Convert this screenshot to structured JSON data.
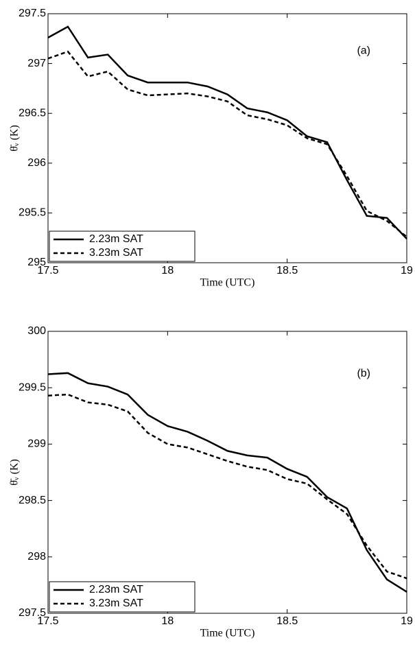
{
  "chart_data": [
    {
      "type": "line",
      "annotation": "(a)",
      "xlabel": "Time (UTC)",
      "ylabel": "θ̄ᵥ (K)",
      "x": [
        17.5,
        17.583,
        17.667,
        17.75,
        17.833,
        17.917,
        18,
        18.083,
        18.167,
        18.25,
        18.333,
        18.417,
        18.5,
        18.583,
        18.667,
        18.75,
        18.833,
        18.917,
        19
      ],
      "series": [
        {
          "name": "2.23m SAT",
          "color": "#000000",
          "linestyle": "solid",
          "values": [
            297.26,
            297.37,
            297.06,
            297.09,
            296.88,
            296.81,
            296.81,
            296.81,
            296.77,
            296.69,
            296.55,
            296.51,
            296.43,
            296.27,
            296.21,
            295.83,
            295.47,
            295.45,
            295.24
          ]
        },
        {
          "name": "3.23m SAT",
          "color": "#000000",
          "linestyle": "dashed",
          "values": [
            297.05,
            297.12,
            296.87,
            296.92,
            296.74,
            296.68,
            296.69,
            296.7,
            296.67,
            296.62,
            296.48,
            296.44,
            296.38,
            296.25,
            296.19,
            295.87,
            295.52,
            295.42,
            295.26
          ]
        }
      ],
      "xlim": [
        17.5,
        19
      ],
      "xticks": [
        17.5,
        18,
        18.5,
        19
      ],
      "ylim": [
        295,
        297.5
      ],
      "yticks": [
        295,
        295.5,
        296,
        296.5,
        297,
        297.5
      ],
      "grid": false,
      "legend": "lower left"
    },
    {
      "type": "line",
      "annotation": "(b)",
      "xlabel": "Time (UTC)",
      "ylabel": "θ̄ᵥ (K)",
      "x": [
        17.5,
        17.583,
        17.667,
        17.75,
        17.833,
        17.917,
        18,
        18.083,
        18.167,
        18.25,
        18.333,
        18.417,
        18.5,
        18.583,
        18.667,
        18.75,
        18.833,
        18.917,
        19
      ],
      "series": [
        {
          "name": "2.23m SAT",
          "color": "#000000",
          "linestyle": "solid",
          "values": [
            299.62,
            299.63,
            299.54,
            299.51,
            299.44,
            299.26,
            299.16,
            299.11,
            299.03,
            298.94,
            298.9,
            298.88,
            298.78,
            298.71,
            298.53,
            298.43,
            298.06,
            297.8,
            297.69
          ]
        },
        {
          "name": "3.23m SAT",
          "color": "#000000",
          "linestyle": "dashed",
          "values": [
            299.43,
            299.44,
            299.37,
            299.35,
            299.29,
            299.1,
            299.0,
            298.97,
            298.91,
            298.85,
            298.8,
            298.77,
            298.69,
            298.65,
            298.51,
            298.38,
            298.1,
            297.87,
            297.81
          ]
        }
      ],
      "xlim": [
        17.5,
        19
      ],
      "xticks": [
        17.5,
        18,
        18.5,
        19
      ],
      "ylim": [
        297.5,
        300
      ],
      "yticks": [
        297.5,
        298,
        298.5,
        299,
        299.5,
        300
      ],
      "grid": false,
      "legend": "lower left"
    }
  ]
}
